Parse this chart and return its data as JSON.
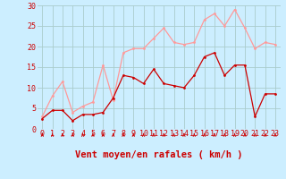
{
  "x": [
    0,
    1,
    2,
    3,
    4,
    5,
    6,
    7,
    8,
    9,
    10,
    11,
    12,
    13,
    14,
    15,
    16,
    17,
    18,
    19,
    20,
    21,
    22,
    23
  ],
  "wind_avg": [
    2.5,
    4.5,
    4.5,
    2.0,
    3.5,
    3.5,
    4.0,
    7.5,
    13.0,
    12.5,
    11.0,
    14.5,
    11.0,
    10.5,
    10.0,
    13.0,
    17.5,
    18.5,
    13.0,
    15.5,
    15.5,
    3.0,
    8.5,
    8.5
  ],
  "wind_gust": [
    3.0,
    8.0,
    11.5,
    4.0,
    5.5,
    6.5,
    15.5,
    7.0,
    18.5,
    19.5,
    19.5,
    22.0,
    24.5,
    21.0,
    20.5,
    21.0,
    26.5,
    28.0,
    25.0,
    29.0,
    24.5,
    19.5,
    21.0,
    20.5
  ],
  "avg_color": "#cc0000",
  "gust_color": "#ff9999",
  "bg_color": "#cceeff",
  "grid_color": "#aacccc",
  "xlabel": "Vent moyen/en rafales ( km/h )",
  "yticks": [
    0,
    5,
    10,
    15,
    20,
    25,
    30
  ],
  "ylim": [
    0,
    30
  ],
  "xlim": [
    -0.5,
    23.5
  ],
  "xlabel_fontsize": 7.5,
  "tick_fontsize": 6,
  "marker_size": 2.0,
  "line_width": 0.9,
  "xlabel_color": "#cc0000",
  "axis_color": "#cc0000",
  "wind_dirs": [
    225,
    270,
    315,
    315,
    270,
    315,
    315,
    315,
    315,
    315,
    315,
    315,
    315,
    315,
    315,
    315,
    315,
    315,
    315,
    315,
    315,
    315,
    270,
    270
  ]
}
